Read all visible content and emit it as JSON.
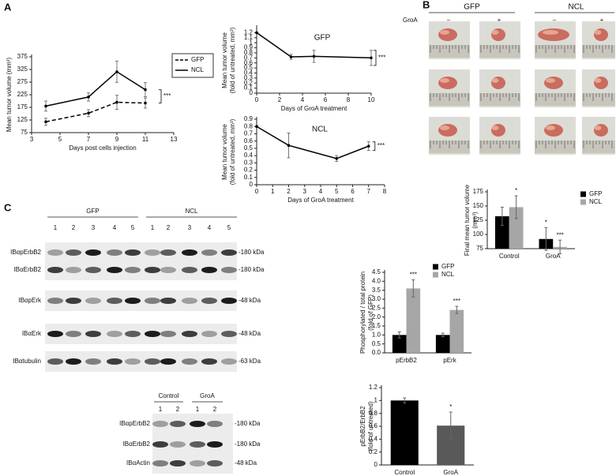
{
  "panels": [
    "A",
    "B",
    "C"
  ],
  "chart_data": [
    {
      "type": "line",
      "x": [
        4,
        7,
        9,
        11
      ],
      "xlim": [
        3,
        13
      ],
      "xticks": [
        3,
        5,
        7,
        9,
        11,
        13
      ],
      "ylim": [
        75,
        375
      ],
      "yticks": [
        75,
        125,
        175,
        225,
        275,
        325,
        375
      ],
      "ylabel": [
        "Mean tumor volume (mm³)"
      ],
      "xlabel": "Days post cells injection",
      "series": [
        {
          "name": "GFP",
          "color": "#000000",
          "dash": true,
          "values": [
            118,
            152,
            195,
            192
          ],
          "errors": [
            14,
            14,
            28,
            20
          ]
        },
        {
          "name": "NCL",
          "color": "#000000",
          "dash": false,
          "values": [
            180,
            216,
            316,
            245
          ],
          "errors": [
            20,
            16,
            42,
            28
          ]
        }
      ],
      "legend": true,
      "annotation": "***"
    },
    {
      "type": "line",
      "title": "GFP",
      "x": [
        0,
        3,
        5,
        10
      ],
      "xlim": [
        0,
        10
      ],
      "xticks": [
        0,
        2,
        4,
        6,
        8,
        10
      ],
      "ylim": [
        0,
        1.3
      ],
      "yticks": [
        0,
        0.1,
        0.2,
        0.3,
        0.4,
        0.5,
        0.6,
        0.7,
        0.8,
        0.9,
        1,
        1.1,
        1.2
      ],
      "ylabel": [
        "Mean tumor volume",
        "(fold of untreated, mm³)"
      ],
      "xlabel": "Days of GroA treatment",
      "series": [
        {
          "color": "#000000",
          "dash": false,
          "values": [
            1.2,
            0.72,
            0.73,
            0.7
          ],
          "errors": [
            0,
            0.05,
            0.12,
            0.15
          ]
        }
      ],
      "legend": false,
      "annotation": "***"
    },
    {
      "type": "line",
      "title": "NCL",
      "x": [
        0,
        2,
        5,
        7
      ],
      "xlim": [
        0,
        8
      ],
      "xticks": [
        0,
        1,
        2,
        3,
        4,
        5,
        6,
        7,
        8
      ],
      "ylim": [
        0,
        0.9
      ],
      "yticks": [
        0,
        0.1,
        0.2,
        0.3,
        0.4,
        0.5,
        0.6,
        0.7,
        0.8,
        0.9
      ],
      "ylabel": [
        "Mean tumor volume",
        "(fold of untreated, mm³)"
      ],
      "xlabel": "Days of GroA treatment",
      "series": [
        {
          "color": "#000000",
          "dash": false,
          "values": [
            0.8,
            0.54,
            0.36,
            0.53
          ],
          "errors": [
            0,
            0.17,
            0.04,
            0.06
          ]
        }
      ],
      "legend": false,
      "annotation": "***"
    },
    {
      "type": "bar",
      "categories": [
        "Control",
        "GroA"
      ],
      "ylim": [
        75,
        175
      ],
      "yticks": [
        75,
        100,
        125,
        150,
        175
      ],
      "ylabel": [
        "Final mean tumor volume",
        "(mm³)"
      ],
      "series": [
        {
          "name": "GFP",
          "color": "#000000",
          "values": [
            132,
            92
          ],
          "errors": [
            16,
            20
          ],
          "significance": [
            null,
            "*"
          ]
        },
        {
          "name": "NCL",
          "color": "#a6a6a6",
          "values": [
            148,
            78
          ],
          "errors": [
            20,
            12
          ],
          "significance": [
            "*",
            "***"
          ]
        }
      ],
      "legend": true
    },
    {
      "type": "bar",
      "categories": [
        "pErbB2",
        "pErk"
      ],
      "ylim": [
        0,
        4.5
      ],
      "yticks": [
        {
          "value": 0,
          "label": "0.0"
        },
        {
          "value": 0.5,
          "label": "0.5"
        },
        {
          "value": 1,
          "label": "1.0"
        },
        {
          "value": 1.5,
          "label": "1.5"
        },
        {
          "value": 2,
          "label": "2.0"
        },
        {
          "value": 2.5,
          "label": "2.5"
        },
        {
          "value": 3,
          "label": "3.0"
        },
        {
          "value": 3.5,
          "label": "3.5"
        },
        {
          "value": 4,
          "label": "4.0"
        },
        {
          "value": 4.5,
          "label": "4.5"
        }
      ],
      "ylabel": [
        "Phosphorylated / total protein",
        "(fold of GFP)"
      ],
      "series": [
        {
          "name": "GFP",
          "color": "#000000",
          "values": [
            1,
            1
          ],
          "errors": [
            0.17,
            0.1
          ]
        },
        {
          "name": "NCL",
          "color": "#a6a6a6",
          "values": [
            3.6,
            2.4
          ],
          "errors": [
            0.48,
            0.2
          ],
          "significance": [
            "***",
            "***"
          ]
        }
      ],
      "legend": true
    },
    {
      "type": "bar",
      "categories": [
        "Control",
        "GroA"
      ],
      "ylim": [
        0,
        1.2
      ],
      "yticks": [
        0,
        0.2,
        0.4,
        0.6,
        0.8,
        1,
        1.2
      ],
      "ylabel": [
        "pErbB2/ErbB2",
        "(fold of untreated)"
      ],
      "series": [
        {
          "colors": [
            "#000000",
            "#595959"
          ],
          "values": [
            1,
            0.61
          ],
          "errors": [
            0.04,
            0.21
          ],
          "significance": [
            null,
            "*"
          ]
        }
      ],
      "legend": false
    }
  ],
  "photos": {
    "groups": [
      "GFP",
      "NCL"
    ],
    "treatment_label": "GroA",
    "treatments": [
      "–",
      "+",
      "–",
      "+"
    ]
  },
  "blots": [
    {
      "groups": [
        "GFP",
        "NCL"
      ],
      "lanes": [
        "1",
        "2",
        "3",
        "4",
        "5",
        "1",
        "2",
        "3",
        "4",
        "5"
      ],
      "rows": [
        {
          "label": "IBαpErbB2",
          "size": "-180 kDa"
        },
        {
          "label": "IBαErbB2",
          "size": "-180 kDa"
        },
        {
          "label": "IBαpErk",
          "size": "-48 kDa"
        },
        {
          "label": "IBαErk",
          "size": "-48 kDa"
        },
        {
          "label": "IBαtubulin",
          "size": "-63 kDa"
        }
      ]
    },
    {
      "groups": [
        "Control",
        "GroA"
      ],
      "lanes": [
        "1",
        "2",
        "1",
        "2"
      ],
      "rows": [
        {
          "label": "IBαpErbB2",
          "size": "-180 kDa"
        },
        {
          "label": "IBαErbB2",
          "size": "-180 kDa"
        },
        {
          "label": "IBαActin",
          "size": "-48 kDa"
        }
      ]
    }
  ]
}
